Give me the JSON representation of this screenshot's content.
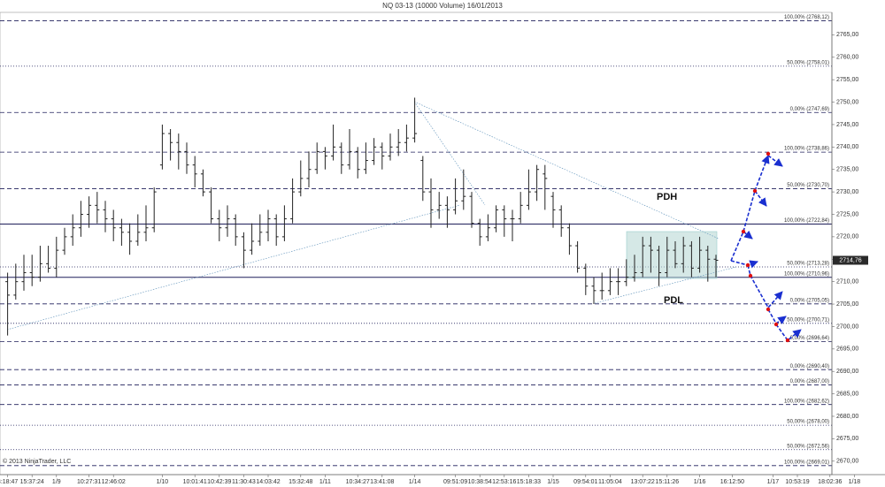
{
  "chart_data": {
    "type": "ohlc",
    "title": "NQ 03-13 (10000 Volume)  16/01/2013",
    "copyright": "© 2013 NinjaTrader, LLC",
    "annotations": [
      "PDH",
      "PDL"
    ],
    "color": "#222222",
    "ylim": [
      2667,
      2770
    ],
    "yticks": [
      {
        "value": 2670,
        "label": "2670,00"
      },
      {
        "value": 2675,
        "label": "2675,00"
      },
      {
        "value": 2680,
        "label": "2680,00"
      },
      {
        "value": 2685,
        "label": "2685,00"
      },
      {
        "value": 2690,
        "label": "2690,00"
      },
      {
        "value": 2695,
        "label": "2695,00"
      },
      {
        "value": 2700,
        "label": "2700,00"
      },
      {
        "value": 2705,
        "label": "2705,00"
      },
      {
        "value": 2710,
        "label": "2710,00"
      },
      {
        "value": 2715,
        "label": "2715,00"
      },
      {
        "value": 2720,
        "label": "2720,00"
      },
      {
        "value": 2725,
        "label": "2725,00"
      },
      {
        "value": 2730,
        "label": "2730,00"
      },
      {
        "value": 2735,
        "label": "2735,00"
      },
      {
        "value": 2740,
        "label": "2740,00"
      },
      {
        "value": 2745,
        "label": "2745,00"
      },
      {
        "value": 2750,
        "label": "2750,00"
      },
      {
        "value": 2755,
        "label": "2755,00"
      },
      {
        "value": 2760,
        "label": "2760,00"
      },
      {
        "value": 2765,
        "label": "2765,00"
      }
    ],
    "last_price": {
      "value": 2714.76,
      "label": "2714,76"
    },
    "levels": [
      {
        "value": 2768.12,
        "label": "100,00% (2768,12)",
        "style": "dashed"
      },
      {
        "value": 2758.01,
        "label": "50,00% (2758,01)",
        "style": "dotted"
      },
      {
        "value": 2747.69,
        "label": "0,00% (2747,69)",
        "style": "dashed"
      },
      {
        "value": 2738.86,
        "label": "100,00% (2738,86)",
        "style": "dashed"
      },
      {
        "value": 2730.7,
        "label": "50,00% (2730,70)",
        "style": "dashed"
      },
      {
        "value": 2722.84,
        "label": "100,00% (2722,84)",
        "style": "solid"
      },
      {
        "value": 2713.28,
        "label": "50,00% (2713,28)",
        "style": "dotted"
      },
      {
        "value": 2710.96,
        "label": "100,00% (2710,96)",
        "style": "solid"
      },
      {
        "value": 2705.05,
        "label": "0,00% (2705,05)",
        "style": "dashed"
      },
      {
        "value": 2700.71,
        "label": "50,00% (2700,71)",
        "style": "dotted"
      },
      {
        "value": 2696.64,
        "label": "0,00% (2696,64)",
        "style": "dashed"
      },
      {
        "value": 2690.4,
        "label": "0,00% (2690,40)",
        "style": "dashed"
      },
      {
        "value": 2687.0,
        "label": "0,00% (2687,00)",
        "style": "dashed"
      },
      {
        "value": 2682.62,
        "label": "100,00% (2682,62)",
        "style": "dashed"
      },
      {
        "value": 2678.0,
        "label": "50,00% (2678,00)",
        "style": "dotted"
      },
      {
        "value": 2672.56,
        "label": "50,00% (2672,56)",
        "style": "dotted"
      },
      {
        "value": 2669.01,
        "label": "100,00% (2669,01)",
        "style": "dashed"
      }
    ],
    "categories": [
      "3:18:47",
      null,
      null,
      "15:37:24",
      null,
      null,
      "1/9",
      null,
      null,
      null,
      "10:27:31",
      null,
      null,
      "12:46:02",
      null,
      null,
      null,
      null,
      null,
      "1/10",
      null,
      null,
      null,
      "10:01:41",
      null,
      null,
      "10:42:39",
      null,
      null,
      "11:30:43",
      null,
      null,
      "14:03:42",
      null,
      null,
      null,
      "15:32:48",
      null,
      null,
      "1/11",
      null,
      null,
      null,
      "10:34:27",
      null,
      null,
      "13:41:08",
      null,
      null,
      null,
      "1/14",
      null,
      null,
      null,
      null,
      "09:51:09",
      null,
      null,
      "10:38:54",
      null,
      null,
      "12:53:16",
      null,
      null,
      "15:18:33",
      null,
      null,
      "1/15",
      null,
      null,
      null,
      "09:54:01",
      null,
      null,
      "11:05:04",
      null,
      null,
      null,
      "13:07:22",
      null,
      null,
      "15:11:26",
      null,
      null,
      null,
      "1/16",
      null,
      null,
      null,
      "16:12:50",
      null,
      null,
      null,
      null,
      "1/17",
      null,
      null,
      "10:53:19",
      null,
      null,
      null,
      "18:02:36",
      null,
      null,
      "1/18"
    ],
    "open": [
      2710,
      2707,
      2710,
      2712,
      2711,
      2714,
      2713,
      2717,
      2720,
      2722,
      2725,
      2727,
      2726,
      2724,
      2722,
      2721,
      2719,
      2721,
      2722,
      2736,
      2743,
      2741,
      2739,
      2736,
      2734,
      2730,
      2724,
      2722,
      2724,
      2720,
      2717,
      2719,
      2721,
      2724,
      2720,
      2724,
      2730,
      2733,
      2735,
      2739,
      2738,
      2740,
      2736,
      2739,
      2735,
      2737,
      2740,
      2738,
      2740,
      2741,
      2742,
      2737,
      2730,
      2726,
      2727,
      2726,
      2728,
      2729,
      2723,
      2720,
      2722,
      2726,
      2724,
      2724,
      2727,
      2730,
      2734,
      2729,
      2726,
      2722,
      2718,
      2713,
      2709,
      2708,
      2708,
      2710,
      2710,
      2711,
      2712,
      2718,
      2717,
      2712,
      2717,
      2714,
      2718,
      2713,
      2717,
      2715,
      null,
      null,
      null,
      null,
      null,
      null,
      null,
      null,
      null,
      null,
      null,
      null,
      null,
      null,
      null,
      null,
      null
    ],
    "high": [
      2712,
      2714,
      2716,
      2716,
      2718,
      2718,
      2720,
      2722,
      2725,
      2728,
      2729,
      2730,
      2728,
      2726,
      2724,
      2723,
      2725,
      2727,
      2731,
      2745,
      2744,
      2743,
      2741,
      2738,
      2735,
      2731,
      2726,
      2727,
      2725,
      2721,
      2723,
      2725,
      2726,
      2725,
      2727,
      2733,
      2737,
      2739,
      2741,
      2740,
      2745,
      2741,
      2744,
      2740,
      2741,
      2742,
      2741,
      2743,
      2744,
      2745,
      2751,
      2738,
      2733,
      2730,
      2729,
      2733,
      2735,
      2730,
      2724,
      2725,
      2727,
      2727,
      2726,
      2730,
      2735,
      2736,
      2736,
      2730,
      2727,
      2723,
      2719,
      2714,
      2711,
      2712,
      2713,
      2713,
      2715,
      2716,
      2720,
      2720,
      2718,
      2720,
      2719,
      2720,
      2719,
      2720,
      2718,
      2716,
      null,
      null,
      null,
      null,
      null,
      null,
      null,
      null,
      null,
      null,
      null,
      null,
      null,
      null,
      null,
      null,
      null
    ],
    "low": [
      2698,
      2706,
      2708,
      2709,
      2710,
      2712,
      2711,
      2716,
      2718,
      2720,
      2722,
      2723,
      2721,
      2719,
      2718,
      2716,
      2718,
      2719,
      2721,
      2735,
      2737,
      2735,
      2734,
      2731,
      2729,
      2723,
      2719,
      2720,
      2718,
      2713,
      2716,
      2718,
      2719,
      2718,
      2719,
      2723,
      2729,
      2731,
      2734,
      2735,
      2737,
      2734,
      2735,
      2733,
      2734,
      2736,
      2735,
      2737,
      2738,
      2739,
      2741,
      2728,
      2722,
      2724,
      2722,
      2725,
      2726,
      2722,
      2718,
      2719,
      2721,
      2720,
      2719,
      2723,
      2726,
      2728,
      2726,
      2722,
      2720,
      2716,
      2712,
      2707,
      2705,
      2706,
      2707,
      2707,
      2709,
      2710,
      2711,
      2712,
      2709,
      2711,
      2713,
      2712,
      2711,
      2712,
      2710,
      2711,
      null,
      null,
      null,
      null,
      null,
      null,
      null,
      null,
      null,
      null,
      null,
      null,
      null,
      null,
      null,
      null,
      null
    ],
    "close": [
      2707,
      2710,
      2712,
      2711,
      2714,
      2713,
      2717,
      2720,
      2722,
      2725,
      2727,
      2726,
      2724,
      2722,
      2721,
      2719,
      2721,
      2722,
      2730,
      2743,
      2741,
      2739,
      2736,
      2734,
      2730,
      2724,
      2722,
      2724,
      2720,
      2717,
      2719,
      2721,
      2724,
      2720,
      2724,
      2730,
      2733,
      2735,
      2739,
      2738,
      2740,
      2736,
      2739,
      2735,
      2737,
      2740,
      2738,
      2740,
      2741,
      2742,
      2743,
      2730,
      2726,
      2727,
      2726,
      2728,
      2729,
      2723,
      2720,
      2722,
      2726,
      2724,
      2724,
      2727,
      2730,
      2735,
      2733,
      2726,
      2722,
      2718,
      2713,
      2709,
      2708,
      2708,
      2710,
      2710,
      2711,
      2712,
      2718,
      2717,
      2712,
      2717,
      2714,
      2718,
      2713,
      2717,
      2715,
      2714.76,
      null,
      null,
      null,
      null,
      null,
      null,
      null,
      null,
      null,
      null,
      null,
      null,
      null,
      null,
      null,
      null,
      null
    ]
  }
}
